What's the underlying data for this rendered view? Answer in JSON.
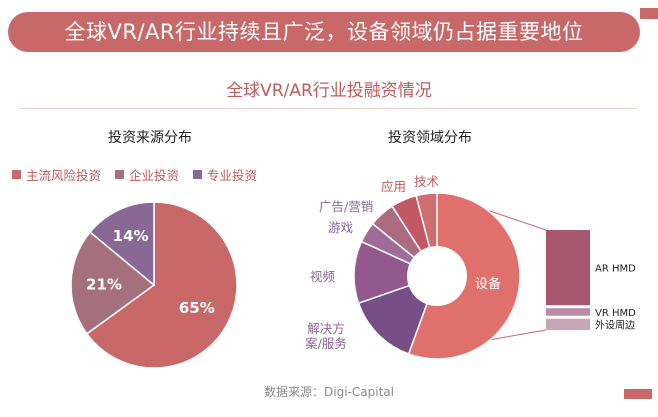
{
  "header": {
    "title": "全球VR/AR行业持续且广泛，设备领域仍占据重要地位",
    "subtitle": "全球VR/AR行业投融资情况"
  },
  "footer": {
    "source": "数据来源：Digi-Capital"
  },
  "chart_data": [
    {
      "type": "pie",
      "title": "投资来源分布",
      "legend_position": "top",
      "labels": [
        "主流风险投资",
        "企业投资",
        "专业投资"
      ],
      "values": [
        65,
        21,
        14
      ],
      "value_labels": [
        "65%",
        "21%",
        "14%"
      ],
      "colors": [
        "#c96869",
        "#a66f7c",
        "#8a6896"
      ]
    },
    {
      "type": "pie",
      "title": "投资领域分布",
      "labels": [
        "设备",
        "解决方案/服务",
        "视频",
        "游戏",
        "广告/营销",
        "应用",
        "技术"
      ],
      "values": [
        55,
        14,
        12,
        4,
        5,
        5,
        4
      ],
      "colors": [
        "#e0706c",
        "#774f86",
        "#93598f",
        "#9e6c96",
        "#ad6b82",
        "#c35864",
        "#ce6e6e"
      ],
      "breakdown": {
        "of": "设备",
        "labels": [
          "AR HMD",
          "VR HMD",
          "外设周边"
        ],
        "values": [
          80,
          8,
          12
        ],
        "colors": [
          "#a9576f",
          "#b989a5",
          "#c7a6b5"
        ]
      }
    }
  ]
}
